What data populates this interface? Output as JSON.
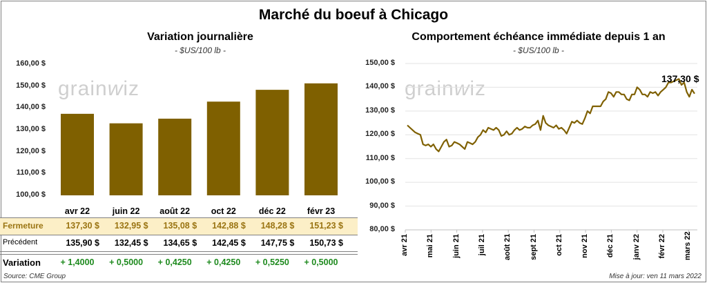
{
  "title": "Marché du boeuf à Chicago",
  "colors": {
    "bar": "#7f6000",
    "line": "#7f6000",
    "fermeture_bg": "#fcefc7",
    "fermeture_text": "#9a7412",
    "variation": "#1e8a1e"
  },
  "watermark": "grainwiz",
  "chart_data": [
    {
      "type": "bar",
      "title": "Variation journalière",
      "subtitle": "- $US/100 lb -",
      "categories": [
        "avr 22",
        "juin 22",
        "août 22",
        "oct 22",
        "déc 22",
        "févr 23"
      ],
      "values": [
        137.3,
        132.95,
        135.08,
        142.88,
        148.28,
        151.23
      ],
      "ylim": [
        100,
        160
      ],
      "yticks": [
        "100,00 $",
        "110,00 $",
        "120,00 $",
        "130,00 $",
        "140,00 $",
        "150,00 $",
        "160,00 $"
      ],
      "grid": false
    },
    {
      "type": "line",
      "title": "Comportement  échéance immédiate depuis 1 an",
      "subtitle": "- $US/100 lb -",
      "ylim": [
        80,
        150
      ],
      "yticks": [
        "80,00 $",
        "90,00 $",
        "100,00 $",
        "110,00 $",
        "120,00 $",
        "130,00 $",
        "140,00 $",
        "150,00 $"
      ],
      "xticks": [
        "avr 21",
        "mai 21",
        "juin 21",
        "juil 21",
        "août 21",
        "sept 21",
        "oct 21",
        "nov 21",
        "déc 21",
        "janv 22",
        "févr 22",
        "mars 22"
      ],
      "last_label": "137,30 $",
      "grid": true,
      "values": [
        124,
        123,
        122,
        121,
        120.5,
        120,
        116,
        115.5,
        116,
        115,
        116,
        114,
        113,
        115,
        117,
        118,
        115,
        115.5,
        117,
        116.5,
        116,
        115,
        114,
        117,
        116.5,
        116,
        117,
        119,
        120,
        122,
        121,
        123,
        122.5,
        122,
        123,
        122,
        119.5,
        120,
        121.5,
        120,
        120.5,
        122,
        123,
        122,
        122.5,
        123.5,
        123,
        123,
        124,
        124.5,
        126,
        122,
        128,
        125,
        124,
        123.5,
        123,
        124,
        122.5,
        123,
        122,
        120.5,
        123,
        125.5,
        125,
        126,
        125,
        124.5,
        127,
        130,
        129,
        132,
        132,
        132,
        132,
        134,
        135,
        138,
        137.5,
        136,
        138,
        138,
        137,
        137,
        135,
        134.5,
        137,
        137,
        140,
        139,
        137,
        137,
        136,
        138,
        137.5,
        138,
        136.5,
        138,
        139,
        140,
        142,
        142,
        142.5,
        143,
        143.5,
        141,
        142,
        138,
        136,
        139,
        137.3
      ]
    }
  ],
  "table": {
    "rows": [
      {
        "label": "Fermeture",
        "values": [
          "137,30 $",
          "132,95 $",
          "135,08 $",
          "142,88 $",
          "148,28 $",
          "151,23 $"
        ]
      },
      {
        "label": "Précédent",
        "values": [
          "135,90 $",
          "132,45 $",
          "134,65 $",
          "142,45 $",
          "147,75 $",
          "150,73 $"
        ]
      },
      {
        "label": "Variation",
        "values": [
          "+ 1,4000",
          "+ 0,5000",
          "+ 0,4250",
          "+ 0,4250",
          "+ 0,5250",
          "+ 0,5000"
        ]
      }
    ]
  },
  "footer": {
    "source": "Source: CME Group",
    "updated": "Mise à jour: ven 11 mars 2022"
  }
}
